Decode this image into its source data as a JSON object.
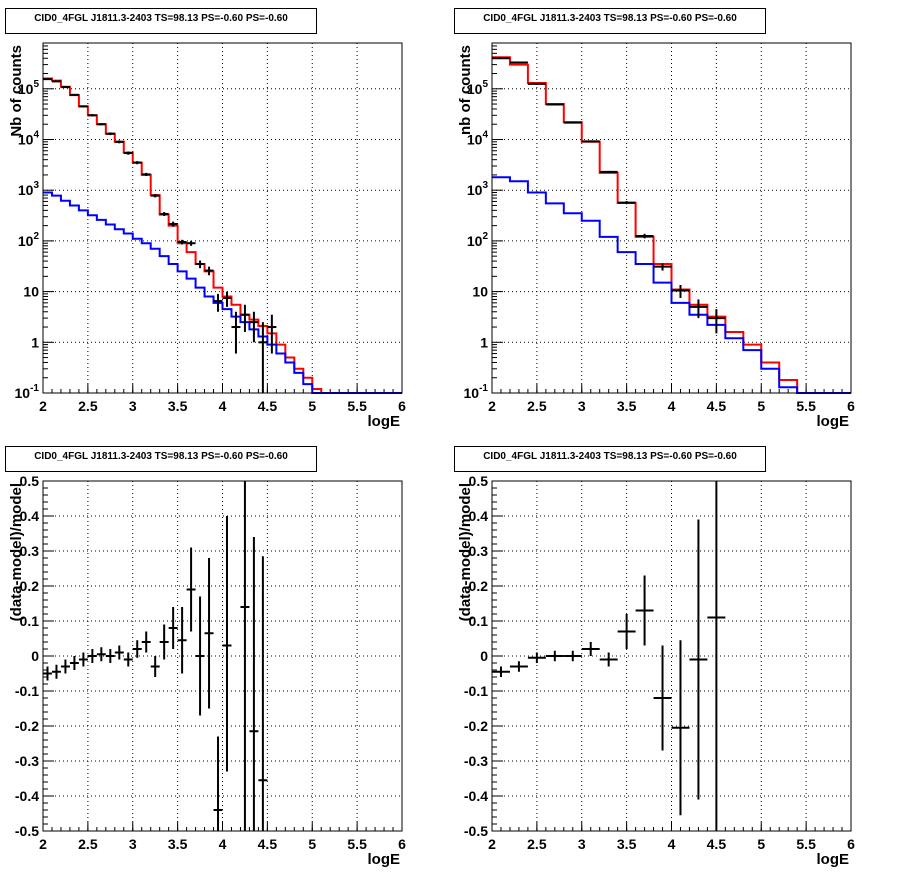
{
  "chart_data": [
    {
      "type": "histogram",
      "title": "CID0_4FGL J1811.3-2403 TS=98.13 PS=-0.60 PS=-0.60",
      "xlabel": "logE",
      "ylabel": "Nb of counts",
      "xlim": [
        2,
        6
      ],
      "ylim": [
        0.1,
        800000
      ],
      "yscale": "log",
      "grid": true,
      "x_ticks": [
        "2",
        "2.5",
        "3",
        "3.5",
        "4",
        "4.5",
        "5",
        "5.5",
        "6"
      ],
      "y_ticks": [
        {
          "v": 0.1,
          "b": "10",
          "e": "-1"
        },
        {
          "v": 1,
          "b": "1",
          "e": ""
        },
        {
          "v": 10,
          "b": "10",
          "e": ""
        },
        {
          "v": 100,
          "b": "10",
          "e": "2"
        },
        {
          "v": 1000,
          "b": "10",
          "e": "3"
        },
        {
          "v": 10000,
          "b": "10",
          "e": "4"
        },
        {
          "v": 100000,
          "b": "10",
          "e": "5"
        }
      ],
      "bin_edges": [
        2.0,
        2.1,
        2.2,
        2.3,
        2.4,
        2.5,
        2.6,
        2.7,
        2.8,
        2.9,
        3.0,
        3.1,
        3.2,
        3.3,
        3.4,
        3.5,
        3.6,
        3.7,
        3.8,
        3.9,
        4.0,
        4.1,
        4.2,
        4.3,
        4.4,
        4.5,
        4.6,
        4.7,
        4.8,
        4.9,
        5.0,
        5.1,
        5.2,
        5.3,
        5.4,
        5.5,
        5.6,
        5.7,
        5.8,
        5.9,
        6.0
      ],
      "series": [
        {
          "color": "#ff0000",
          "values": [
            160000,
            145000,
            110000,
            75000,
            45000,
            30000,
            20000,
            13000,
            9000,
            5500,
            3500,
            2000,
            800,
            330,
            200,
            90,
            60,
            35,
            25,
            12,
            8,
            5.5,
            3.5,
            2.8,
            2.1,
            1.5,
            0.9,
            0.5,
            0.3,
            0.2,
            0.12,
            0.1,
            0.1,
            0.1,
            0.1,
            0.1,
            0.1,
            0.1,
            0.1,
            0.1
          ]
        },
        {
          "color": "#0000ff",
          "values": [
            900,
            780,
            620,
            500,
            400,
            320,
            260,
            210,
            170,
            140,
            110,
            90,
            70,
            50,
            35,
            25,
            18,
            12,
            8,
            6,
            4.5,
            3.2,
            2.5,
            1.8,
            1.3,
            0.9,
            0.6,
            0.4,
            0.25,
            0.15,
            0.1,
            0.1,
            0.1,
            0.1,
            0.1,
            0.1,
            0.1,
            0.1,
            0.1,
            0.1
          ]
        }
      ],
      "data_points": [
        {
          "x": 2.05,
          "y": 155000,
          "lo": 150000,
          "hi": 160000
        },
        {
          "x": 2.15,
          "y": 140000,
          "lo": 135000,
          "hi": 145000
        },
        {
          "x": 2.25,
          "y": 108000,
          "lo": 104000,
          "hi": 112000
        },
        {
          "x": 2.35,
          "y": 76000,
          "lo": 73000,
          "hi": 79000
        },
        {
          "x": 2.45,
          "y": 45000,
          "lo": 43000,
          "hi": 47000
        },
        {
          "x": 2.55,
          "y": 30000,
          "lo": 28500,
          "hi": 31500
        },
        {
          "x": 2.65,
          "y": 20000,
          "lo": 19000,
          "hi": 21000
        },
        {
          "x": 2.75,
          "y": 13000,
          "lo": 12200,
          "hi": 13800
        },
        {
          "x": 2.85,
          "y": 9000,
          "lo": 8400,
          "hi": 9600
        },
        {
          "x": 2.95,
          "y": 5400,
          "lo": 5000,
          "hi": 5800
        },
        {
          "x": 3.05,
          "y": 3500,
          "lo": 3250,
          "hi": 3750
        },
        {
          "x": 3.15,
          "y": 2050,
          "lo": 1900,
          "hi": 2200
        },
        {
          "x": 3.25,
          "y": 780,
          "lo": 720,
          "hi": 840
        },
        {
          "x": 3.35,
          "y": 340,
          "lo": 310,
          "hi": 370
        },
        {
          "x": 3.45,
          "y": 215,
          "lo": 190,
          "hi": 240
        },
        {
          "x": 3.55,
          "y": 95,
          "lo": 85,
          "hi": 105
        },
        {
          "x": 3.65,
          "y": 90,
          "lo": 80,
          "hi": 100
        },
        {
          "x": 3.75,
          "y": 35,
          "lo": 29,
          "hi": 41
        },
        {
          "x": 3.85,
          "y": 26,
          "lo": 21,
          "hi": 31
        },
        {
          "x": 3.95,
          "y": 6.5,
          "lo": 4,
          "hi": 9
        },
        {
          "x": 4.05,
          "y": 7.5,
          "lo": 5,
          "hi": 10
        },
        {
          "x": 4.15,
          "y": 2,
          "lo": 0.6,
          "hi": 4
        },
        {
          "x": 4.25,
          "y": 3.5,
          "lo": 1.6,
          "hi": 5.5
        },
        {
          "x": 4.35,
          "y": 2.5,
          "lo": 1,
          "hi": 4
        },
        {
          "x": 4.45,
          "y": 1,
          "lo": 0.1,
          "hi": 2.5
        },
        {
          "x": 4.55,
          "y": 2,
          "lo": 0.6,
          "hi": 3.5
        }
      ]
    },
    {
      "type": "histogram",
      "title": "CID0_4FGL J1811.3-2403 TS=98.13 PS=-0.60 PS=-0.60",
      "xlabel": "logE",
      "ylabel": "nb of counts",
      "xlim": [
        2,
        6
      ],
      "ylim": [
        0.1,
        800000
      ],
      "yscale": "log",
      "grid": true,
      "x_ticks": [
        "2",
        "2.5",
        "3",
        "3.5",
        "4",
        "4.5",
        "5",
        "5.5",
        "6"
      ],
      "y_ticks": [
        {
          "v": 0.1,
          "b": "10",
          "e": "-1"
        },
        {
          "v": 1,
          "b": "1",
          "e": ""
        },
        {
          "v": 10,
          "b": "10",
          "e": ""
        },
        {
          "v": 100,
          "b": "10",
          "e": "2"
        },
        {
          "v": 1000,
          "b": "10",
          "e": "3"
        },
        {
          "v": 10000,
          "b": "10",
          "e": "4"
        },
        {
          "v": 100000,
          "b": "10",
          "e": "5"
        }
      ],
      "bin_edges": [
        2.0,
        2.2,
        2.4,
        2.6,
        2.8,
        3.0,
        3.2,
        3.4,
        3.6,
        3.8,
        4.0,
        4.2,
        4.4,
        4.6,
        4.8,
        5.0,
        5.2,
        5.4,
        5.6,
        5.8,
        6.0
      ],
      "series": [
        {
          "color": "#ff0000",
          "values": [
            420000,
            300000,
            130000,
            50000,
            22000,
            9000,
            2200,
            560,
            120,
            35,
            11,
            5.5,
            3.2,
            1.6,
            0.9,
            0.4,
            0.18,
            0.1,
            0.1,
            0.1
          ]
        },
        {
          "color": "#0000ff",
          "values": [
            1800,
            1500,
            900,
            550,
            350,
            250,
            120,
            60,
            35,
            15,
            6,
            3.5,
            2.2,
            1.2,
            0.7,
            0.3,
            0.13,
            0.1,
            0.1,
            0.1
          ]
        }
      ],
      "data_points": [
        {
          "x": 2.1,
          "y": 400000,
          "lo": 390000,
          "hi": 410000
        },
        {
          "x": 2.3,
          "y": 330000,
          "lo": 322000,
          "hi": 338000
        },
        {
          "x": 2.5,
          "y": 125000,
          "lo": 121000,
          "hi": 129000
        },
        {
          "x": 2.7,
          "y": 49000,
          "lo": 47000,
          "hi": 51000
        },
        {
          "x": 2.9,
          "y": 21500,
          "lo": 20700,
          "hi": 22300
        },
        {
          "x": 3.1,
          "y": 9200,
          "lo": 8800,
          "hi": 9600
        },
        {
          "x": 3.3,
          "y": 2300,
          "lo": 2200,
          "hi": 2400
        },
        {
          "x": 3.5,
          "y": 570,
          "lo": 530,
          "hi": 610
        },
        {
          "x": 3.7,
          "y": 125,
          "lo": 112,
          "hi": 138
        },
        {
          "x": 3.9,
          "y": 31,
          "lo": 26,
          "hi": 36
        },
        {
          "x": 4.1,
          "y": 10.5,
          "lo": 7.5,
          "hi": 13.5
        },
        {
          "x": 4.3,
          "y": 5,
          "lo": 3,
          "hi": 7
        },
        {
          "x": 4.5,
          "y": 3,
          "lo": 1.5,
          "hi": 4.5
        }
      ]
    },
    {
      "type": "scatter",
      "title": "CID0_4FGL J1811.3-2403 TS=98.13 PS=-0.60 PS=-0.60",
      "xlabel": "logE",
      "ylabel": "(data-model)/model",
      "xlim": [
        2,
        6
      ],
      "ylim": [
        -0.5,
        0.5
      ],
      "yscale": "linear",
      "grid": true,
      "x_ticks": [
        "2",
        "2.5",
        "3",
        "3.5",
        "4",
        "4.5",
        "5",
        "5.5",
        "6"
      ],
      "y_tick_labels": [
        "-0.5",
        "-0.4",
        "-0.3",
        "-0.2",
        "-0.1",
        "0",
        "0.1",
        "0.2",
        "0.3",
        "0.4",
        "0.5"
      ],
      "y_tick_values": [
        -0.5,
        -0.4,
        -0.3,
        -0.2,
        -0.1,
        0,
        0.1,
        0.2,
        0.3,
        0.4,
        0.5
      ],
      "half_width": 0.05,
      "data_points": [
        {
          "x": 2.05,
          "y": -0.05,
          "lo": -0.07,
          "hi": -0.03
        },
        {
          "x": 2.15,
          "y": -0.045,
          "lo": -0.065,
          "hi": -0.025
        },
        {
          "x": 2.25,
          "y": -0.03,
          "lo": -0.05,
          "hi": -0.01
        },
        {
          "x": 2.35,
          "y": -0.02,
          "lo": -0.04,
          "hi": 0.0
        },
        {
          "x": 2.45,
          "y": -0.01,
          "lo": -0.03,
          "hi": 0.01
        },
        {
          "x": 2.55,
          "y": 0.0,
          "lo": -0.02,
          "hi": 0.02
        },
        {
          "x": 2.65,
          "y": 0.005,
          "lo": -0.015,
          "hi": 0.025
        },
        {
          "x": 2.75,
          "y": 0.0,
          "lo": -0.02,
          "hi": 0.02
        },
        {
          "x": 2.85,
          "y": 0.01,
          "lo": -0.01,
          "hi": 0.03
        },
        {
          "x": 2.95,
          "y": -0.01,
          "lo": -0.03,
          "hi": 0.01
        },
        {
          "x": 3.05,
          "y": 0.02,
          "lo": -0.005,
          "hi": 0.045
        },
        {
          "x": 3.15,
          "y": 0.04,
          "lo": 0.01,
          "hi": 0.07
        },
        {
          "x": 3.25,
          "y": -0.03,
          "lo": -0.06,
          "hi": 0.0
        },
        {
          "x": 3.35,
          "y": 0.04,
          "lo": -0.01,
          "hi": 0.09
        },
        {
          "x": 3.45,
          "y": 0.08,
          "lo": 0.02,
          "hi": 0.14
        },
        {
          "x": 3.55,
          "y": 0.045,
          "lo": -0.05,
          "hi": 0.14
        },
        {
          "x": 3.65,
          "y": 0.19,
          "lo": 0.07,
          "hi": 0.31
        },
        {
          "x": 3.75,
          "y": 0.0,
          "lo": -0.17,
          "hi": 0.17
        },
        {
          "x": 3.85,
          "y": 0.065,
          "lo": -0.15,
          "hi": 0.28
        },
        {
          "x": 3.95,
          "y": -0.44,
          "lo": -0.5,
          "hi": -0.23
        },
        {
          "x": 4.05,
          "y": 0.03,
          "lo": -0.33,
          "hi": 0.4
        },
        {
          "x": 4.25,
          "y": 0.14,
          "lo": -0.5,
          "hi": 0.5
        },
        {
          "x": 4.35,
          "y": -0.215,
          "lo": -0.5,
          "hi": 0.34
        },
        {
          "x": 4.45,
          "y": -0.355,
          "lo": -0.5,
          "hi": 0.285
        }
      ]
    },
    {
      "type": "scatter",
      "title": "CID0_4FGL J1811.3-2403 TS=98.13 PS=-0.60 PS=-0.60",
      "xlabel": "logE",
      "ylabel": "(data-model)/model",
      "xlim": [
        2,
        6
      ],
      "ylim": [
        -0.5,
        0.5
      ],
      "yscale": "linear",
      "grid": true,
      "x_ticks": [
        "2",
        "2.5",
        "3",
        "3.5",
        "4",
        "4.5",
        "5",
        "5.5",
        "6"
      ],
      "y_tick_labels": [
        "-0.5",
        "-0.4",
        "-0.3",
        "-0.2",
        "-0.1",
        "0",
        "0.1",
        "0.2",
        "0.3",
        "0.4",
        "0.5"
      ],
      "y_tick_values": [
        -0.5,
        -0.4,
        -0.3,
        -0.2,
        -0.1,
        0,
        0.1,
        0.2,
        0.3,
        0.4,
        0.5
      ],
      "half_width": 0.1,
      "data_points": [
        {
          "x": 2.1,
          "y": -0.045,
          "lo": -0.06,
          "hi": -0.03
        },
        {
          "x": 2.3,
          "y": -0.03,
          "lo": -0.045,
          "hi": -0.015
        },
        {
          "x": 2.5,
          "y": -0.005,
          "lo": -0.02,
          "hi": 0.01
        },
        {
          "x": 2.7,
          "y": 0.0,
          "lo": -0.015,
          "hi": 0.015
        },
        {
          "x": 2.9,
          "y": 0.0,
          "lo": -0.015,
          "hi": 0.015
        },
        {
          "x": 3.1,
          "y": 0.02,
          "lo": 0.0,
          "hi": 0.04
        },
        {
          "x": 3.3,
          "y": -0.01,
          "lo": -0.03,
          "hi": 0.01
        },
        {
          "x": 3.5,
          "y": 0.07,
          "lo": 0.02,
          "hi": 0.12
        },
        {
          "x": 3.7,
          "y": 0.13,
          "lo": 0.03,
          "hi": 0.23
        },
        {
          "x": 3.9,
          "y": -0.12,
          "lo": -0.27,
          "hi": 0.03
        },
        {
          "x": 4.1,
          "y": -0.205,
          "lo": -0.455,
          "hi": 0.045
        },
        {
          "x": 4.3,
          "y": -0.01,
          "lo": -0.41,
          "hi": 0.39
        },
        {
          "x": 4.5,
          "y": 0.11,
          "lo": -0.5,
          "hi": 0.5
        }
      ]
    }
  ]
}
